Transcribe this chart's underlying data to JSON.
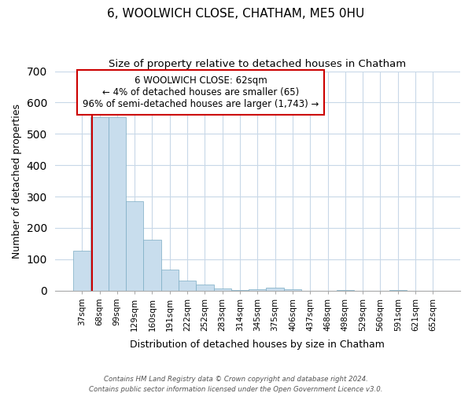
{
  "title": "6, WOOLWICH CLOSE, CHATHAM, ME5 0HU",
  "subtitle": "Size of property relative to detached houses in Chatham",
  "xlabel": "Distribution of detached houses by size in Chatham",
  "ylabel": "Number of detached properties",
  "bar_labels": [
    "37sqm",
    "68sqm",
    "99sqm",
    "129sqm",
    "160sqm",
    "191sqm",
    "222sqm",
    "252sqm",
    "283sqm",
    "314sqm",
    "345sqm",
    "375sqm",
    "406sqm",
    "437sqm",
    "468sqm",
    "498sqm",
    "529sqm",
    "560sqm",
    "591sqm",
    "621sqm",
    "652sqm"
  ],
  "bar_values": [
    128,
    554,
    554,
    284,
    163,
    68,
    33,
    19,
    8,
    2,
    5,
    10,
    5,
    0,
    0,
    3,
    0,
    0,
    3,
    0,
    0
  ],
  "bar_color": "#c8dded",
  "bar_edge_color": "#7bacc4",
  "vline_color": "#cc0000",
  "vline_position": 0.575,
  "box_text_line1": "6 WOOLWICH CLOSE: 62sqm",
  "box_text_line2": "← 4% of detached houses are smaller (65)",
  "box_text_line3": "96% of semi-detached houses are larger (1,743) →",
  "box_color": "#ffffff",
  "box_edge_color": "#cc0000",
  "ylim": [
    0,
    700
  ],
  "yticks": [
    0,
    100,
    200,
    300,
    400,
    500,
    600,
    700
  ],
  "footer_line1": "Contains HM Land Registry data © Crown copyright and database right 2024.",
  "footer_line2": "Contains public sector information licensed under the Open Government Licence v3.0."
}
